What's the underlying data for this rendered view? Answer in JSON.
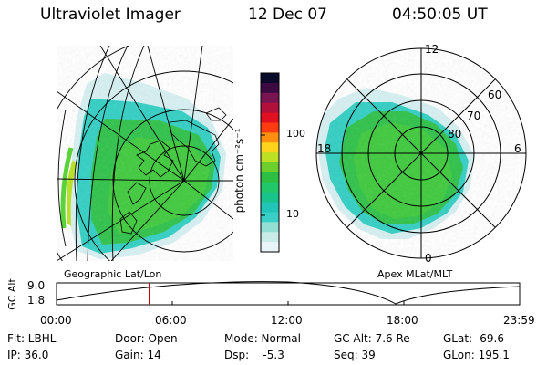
{
  "header": {
    "instrument": "Ultraviolet Imager",
    "date": "12 Dec 07",
    "time": "04:50:05 UT"
  },
  "colorbar": {
    "label": "photon cm⁻²s⁻¹",
    "tick_labels": [
      "100",
      "10"
    ],
    "colors": [
      "#e8f4f8",
      "#c9ece8",
      "#93dfd6",
      "#38cfc6",
      "#22c4b8",
      "#18c48c",
      "#21c86a",
      "#2dbf43",
      "#6ccf2e",
      "#bde024",
      "#ffd21c",
      "#ff8f10",
      "#ff3b12",
      "#e01020",
      "#b0103a",
      "#781452",
      "#3a0a40",
      "#0a0a2a"
    ]
  },
  "geographic_map": {
    "title": "Geographic Lat/Lon"
  },
  "apex_map": {
    "title": "Apex MLat/MLT",
    "mlt_labels": {
      "top": "12",
      "left": "18",
      "right": "6",
      "bottom": "0"
    },
    "lat_labels": [
      "60",
      "70",
      "80"
    ]
  },
  "altitude_plot": {
    "ylabel": "GC Alt",
    "y_ticks": [
      "9.0",
      "1.8"
    ],
    "x_ticks": [
      "00:00",
      "06:00",
      "12:00",
      "18:00",
      "23:59"
    ],
    "current_time_frac": 0.2
  },
  "info_table": [
    [
      {
        "label": "Flt: LBHL"
      },
      {
        "label": "Door: Open"
      },
      {
        "label": "Mode: Normal"
      },
      {
        "label": "GC Alt: 7.6 Re"
      },
      {
        "label": "GLat: -69.6"
      }
    ],
    [
      {
        "label": "IP: 36.0"
      },
      {
        "label": "Gain: 14"
      },
      {
        "label": "Dsp:    -5.3"
      },
      {
        "label": "Seq: 39"
      },
      {
        "label": "GLon: 195.1"
      }
    ]
  ],
  "colors": {
    "aurora_green": "#2fc24a",
    "aurora_teal": "#33cfc4",
    "aurora_light": "#d6f0f2",
    "marker_red": "#cc0000"
  }
}
